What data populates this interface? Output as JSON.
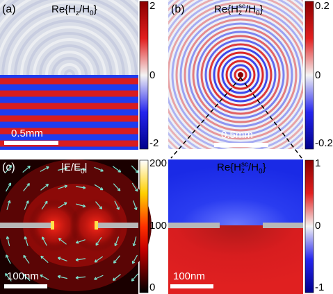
{
  "panels": [
    {
      "label": "(a)",
      "title_main": "Re{H",
      "title_sub": "z",
      "title_sup": "",
      "title_mid": "/H",
      "title_sub2": "0",
      "title_end": "}",
      "scalebar": "0.5mm",
      "cbar_ticks": [
        "2",
        "0",
        "-2"
      ]
    },
    {
      "label": "(b)",
      "title_main": "Re{H",
      "title_sub": "z",
      "title_sup": "sc",
      "title_mid": "/H",
      "title_sub2": "0",
      "title_end": "}",
      "scalebar": "0.5mm",
      "cbar_ticks": [
        "0.2",
        "0",
        "-0.2"
      ]
    },
    {
      "label": "(c)",
      "title_main": "|E/E",
      "title_sub": "0",
      "title_sup": "",
      "title_mid": "",
      "title_sub2": "",
      "title_end": "|",
      "scalebar": "100nm",
      "cbar_ticks": [
        "200",
        "100",
        "0"
      ]
    },
    {
      "label": "",
      "title_main": "Re{H",
      "title_sub": "z",
      "title_sup": "sc",
      "title_mid": "/H",
      "title_sub2": "0",
      "title_end": "}",
      "scalebar": "100nm",
      "cbar_ticks": [
        "1",
        "0",
        "-1"
      ]
    }
  ],
  "colors": {
    "red": "#d8191c",
    "blue": "#1a1aee",
    "white": "#f2f2f2",
    "metal": "#b8b8b8",
    "arrow": "#7fe6d2"
  }
}
